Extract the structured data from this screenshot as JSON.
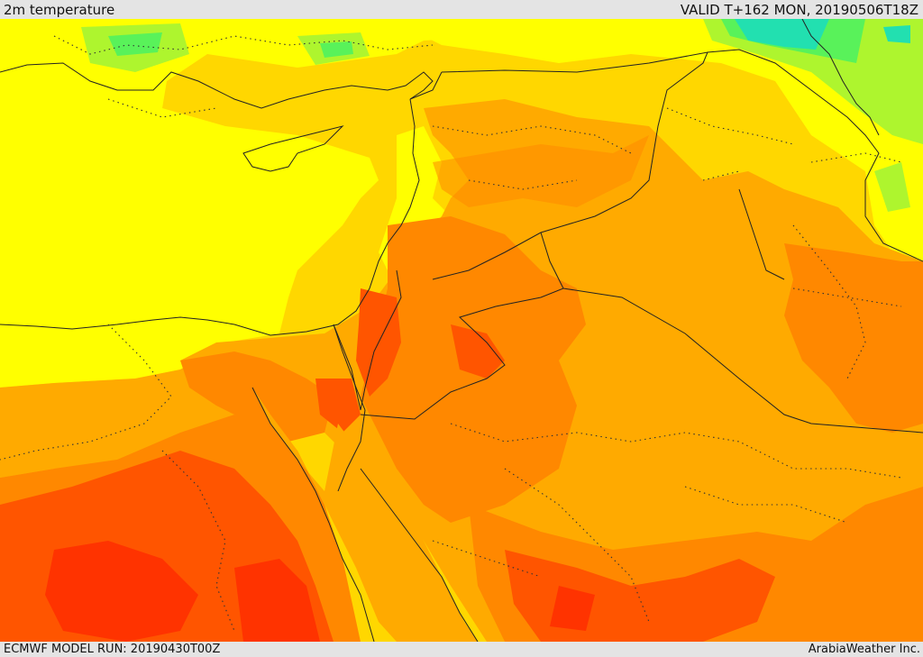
{
  "header": {
    "title": "2m temperature",
    "valid": "VALID T+162 MON, 20190506T18Z"
  },
  "footer": {
    "run": "ECMWF MODEL RUN: 20190430T00Z",
    "credit": "ArabiaWeather Inc."
  },
  "map": {
    "field": "2m temperature",
    "colors": {
      "cyan": "#22e0b0",
      "green": "#59f25a",
      "light_green": "#aef52e",
      "yellow": "#ffff00",
      "light_orange": "#ffd700",
      "orange": "#ffaa00",
      "dark_orange": "#ff8800",
      "red_orange": "#ff5500",
      "red": "#ff3300"
    }
  }
}
